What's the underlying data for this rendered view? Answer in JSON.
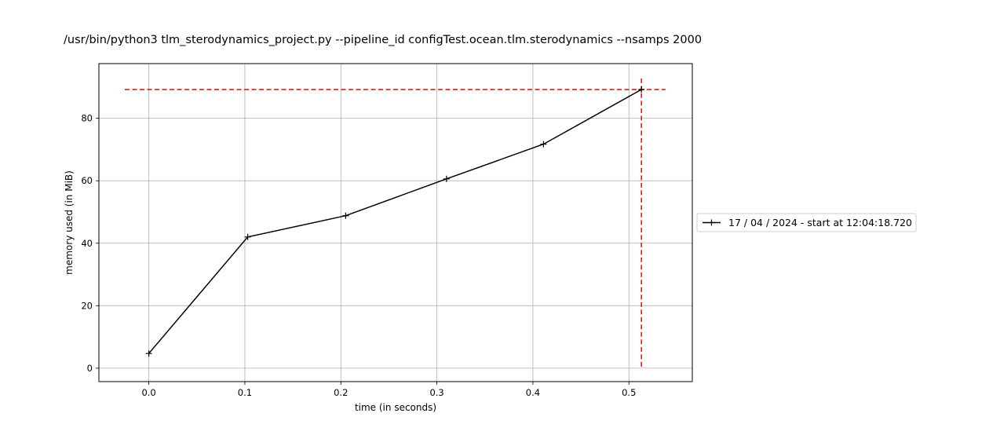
{
  "chart_data": {
    "type": "line",
    "title": "/usr/bin/python3 tlm_sterodynamics_project.py --pipeline_id configTest.ocean.tlm.sterodynamics --nsamps 2000",
    "xlabel": "time (in seconds)",
    "ylabel": "memory used (in MiB)",
    "xlim": [
      -0.052,
      0.566
    ],
    "ylim": [
      -4.3,
      97.5
    ],
    "xticks": [
      0.0,
      0.1,
      0.2,
      0.3,
      0.4,
      0.5
    ],
    "xtick_labels": [
      "0.0",
      "0.1",
      "0.2",
      "0.3",
      "0.4",
      "0.5"
    ],
    "yticks": [
      0,
      20,
      40,
      60,
      80
    ],
    "ytick_labels": [
      "0",
      "20",
      "40",
      "60",
      "80"
    ],
    "grid": true,
    "legend_position": "right, outside the axes",
    "series": [
      {
        "name": "17 / 04 / 2024 - start at 12:04:18.720",
        "color": "#000000",
        "marker": "+",
        "x": [
          0.0,
          0.103,
          0.205,
          0.31,
          0.411,
          0.513
        ],
        "y": [
          4.7,
          42.0,
          48.8,
          60.6,
          71.7,
          89.2
        ]
      }
    ],
    "reference_lines": {
      "color": "#e01c1c",
      "style": "dashed",
      "horizontal": {
        "y": 89.2,
        "x_from": -0.025,
        "x_to": 0.538
      },
      "vertical": {
        "x": 0.513,
        "y_from": 0.5,
        "y_to": 93.5
      }
    }
  }
}
